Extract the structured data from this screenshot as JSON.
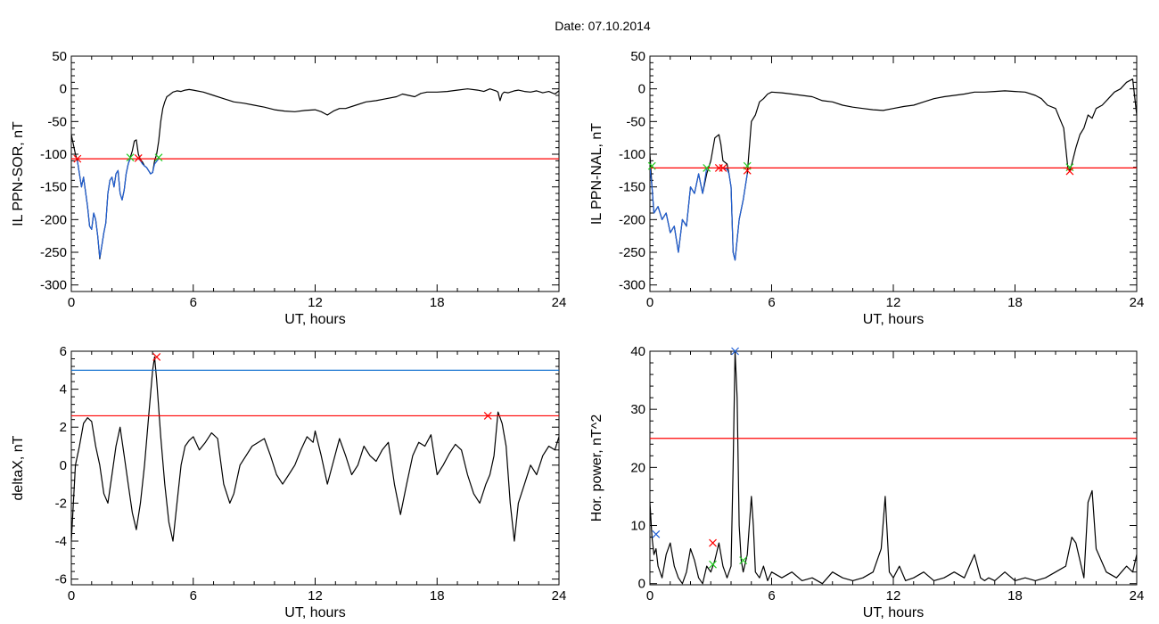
{
  "figure_title": "Date:  07.10.2014",
  "colors": {
    "black": "#000000",
    "threshold": "#ff0000",
    "blue_level": "#0066cc",
    "blue_trace": "#1f5fd6",
    "green_mark": "#22cc22",
    "red_mark": "#ff0000"
  },
  "chart_data": [
    {
      "id": "il-sor",
      "type": "line",
      "title": "",
      "xlabel": "UT, hours",
      "ylabel": "IL PPN-SOR, nT",
      "xlim": [
        0,
        24
      ],
      "ylim": [
        -310,
        50
      ],
      "xticks": [
        0,
        6,
        12,
        18,
        24
      ],
      "yticks": [
        -300,
        -250,
        -200,
        -150,
        -100,
        -50,
        0,
        50
      ],
      "grid": false,
      "hlines": [
        {
          "y": -107,
          "color": "#ff0000"
        }
      ],
      "series": [
        {
          "color": "#000000",
          "x": [
            0,
            0.1,
            0.2,
            0.3,
            0.5,
            0.6,
            0.8,
            0.9,
            1.0,
            1.1,
            1.2,
            1.3,
            1.4,
            1.5,
            1.6,
            1.7,
            1.8,
            1.9,
            2.0,
            2.1,
            2.2,
            2.3,
            2.4,
            2.5,
            2.6,
            2.7,
            2.8,
            2.9,
            3.0,
            3.1,
            3.2,
            3.3,
            3.4,
            3.5,
            3.6,
            3.7,
            3.8,
            3.9,
            4.0,
            4.1,
            4.2,
            4.3,
            4.4,
            4.5,
            4.6,
            4.7,
            4.8,
            5.0,
            5.2,
            5.4,
            5.6,
            5.8,
            6.0,
            6.5,
            7.0,
            7.5,
            8.0,
            8.5,
            9.0,
            9.5,
            10.0,
            10.5,
            11.0,
            11.5,
            12.0,
            12.3,
            12.6,
            12.9,
            13.2,
            13.5,
            14.0,
            14.5,
            15.0,
            15.5,
            16.0,
            16.3,
            16.6,
            16.9,
            17.2,
            17.5,
            18.0,
            18.5,
            19.0,
            19.5,
            20.0,
            20.3,
            20.6,
            20.9,
            21.0,
            21.1,
            21.2,
            21.3,
            21.5,
            21.8,
            22.0,
            22.3,
            22.6,
            22.9,
            23.2,
            23.5,
            23.8,
            24.0
          ],
          "y": [
            -70,
            -85,
            -100,
            -110,
            -150,
            -135,
            -180,
            -210,
            -215,
            -190,
            -200,
            -225,
            -260,
            -240,
            -220,
            -205,
            -160,
            -140,
            -135,
            -150,
            -130,
            -125,
            -160,
            -170,
            -155,
            -130,
            -115,
            -105,
            -95,
            -80,
            -78,
            -100,
            -108,
            -112,
            -118,
            -120,
            -125,
            -130,
            -128,
            -110,
            -100,
            -80,
            -50,
            -30,
            -20,
            -12,
            -10,
            -5,
            -3,
            -4,
            -2,
            -1,
            -2,
            -5,
            -10,
            -15,
            -20,
            -22,
            -25,
            -28,
            -32,
            -34,
            -35,
            -33,
            -32,
            -35,
            -40,
            -34,
            -30,
            -30,
            -25,
            -20,
            -18,
            -15,
            -12,
            -8,
            -10,
            -12,
            -7,
            -5,
            -5,
            -4,
            -2,
            0,
            -2,
            -4,
            0,
            -3,
            -5,
            -18,
            -8,
            -5,
            -6,
            -3,
            -2,
            -4,
            -5,
            -3,
            -6,
            -4,
            -8,
            -3
          ]
        },
        {
          "color": "#1f5fd6",
          "x": [
            0.3,
            0.5,
            0.6,
            0.8,
            0.9,
            1.0,
            1.1,
            1.2,
            1.3,
            1.4,
            1.5,
            1.6,
            1.7,
            1.8,
            1.9,
            2.0,
            2.1,
            2.2,
            2.3,
            2.4,
            2.5,
            2.6,
            2.7,
            2.8,
            2.9
          ],
          "y": [
            -110,
            -150,
            -135,
            -180,
            -210,
            -215,
            -190,
            -200,
            -225,
            -258,
            -240,
            -220,
            -205,
            -160,
            -140,
            -135,
            -150,
            -130,
            -125,
            -160,
            -170,
            -155,
            -130,
            -115,
            -107
          ]
        },
        {
          "color": "#1f5fd6",
          "x": [
            3.3,
            3.4,
            3.5,
            3.6,
            3.7,
            3.8,
            3.9,
            4.0,
            4.1,
            4.3
          ],
          "y": [
            -107,
            -110,
            -115,
            -118,
            -120,
            -125,
            -130,
            -128,
            -115,
            -107
          ]
        }
      ],
      "markers": [
        {
          "x": 0.3,
          "y": -107,
          "color": "#ff0000"
        },
        {
          "x": 2.9,
          "y": -105,
          "color": "#22cc22"
        },
        {
          "x": 3.3,
          "y": -106,
          "color": "#ff0000"
        },
        {
          "x": 4.3,
          "y": -105,
          "color": "#22cc22"
        }
      ]
    },
    {
      "id": "il-nal",
      "type": "line",
      "title": "",
      "xlabel": "UT, hours",
      "ylabel": "IL PPN-NAL, nT",
      "xlim": [
        0,
        24
      ],
      "ylim": [
        -310,
        50
      ],
      "xticks": [
        0,
        6,
        12,
        18,
        24
      ],
      "yticks": [
        -300,
        -250,
        -200,
        -150,
        -100,
        -50,
        0,
        50
      ],
      "grid": false,
      "hlines": [
        {
          "y": -121,
          "color": "#ff0000"
        }
      ],
      "series": [
        {
          "color": "#000000",
          "x": [
            0,
            0.1,
            0.2,
            0.4,
            0.6,
            0.8,
            1.0,
            1.2,
            1.4,
            1.6,
            1.8,
            2.0,
            2.2,
            2.4,
            2.6,
            2.8,
            3.0,
            3.2,
            3.4,
            3.5,
            3.6,
            3.8,
            3.9,
            4.0,
            4.1,
            4.2,
            4.4,
            4.6,
            4.7,
            4.8,
            5.0,
            5.2,
            5.4,
            5.6,
            5.8,
            6.0,
            6.5,
            7.0,
            7.5,
            8.0,
            8.5,
            9.0,
            9.5,
            10.0,
            10.5,
            11.0,
            11.5,
            12.0,
            12.5,
            13.0,
            13.5,
            14.0,
            14.5,
            15.0,
            15.5,
            16.0,
            16.5,
            17.0,
            17.5,
            18.0,
            18.5,
            19.0,
            19.3,
            19.6,
            20.0,
            20.2,
            20.4,
            20.6,
            20.7,
            20.8,
            21.0,
            21.2,
            21.4,
            21.6,
            21.8,
            22.0,
            22.3,
            22.6,
            22.9,
            23.2,
            23.5,
            23.8,
            24.0
          ],
          "y": [
            -100,
            -150,
            -190,
            -180,
            -200,
            -190,
            -220,
            -210,
            -250,
            -200,
            -210,
            -150,
            -160,
            -130,
            -160,
            -130,
            -110,
            -75,
            -70,
            -85,
            -110,
            -115,
            -130,
            -150,
            -250,
            -262,
            -200,
            -170,
            -150,
            -130,
            -50,
            -40,
            -20,
            -15,
            -8,
            -5,
            -6,
            -8,
            -10,
            -12,
            -18,
            -20,
            -25,
            -28,
            -30,
            -32,
            -33,
            -30,
            -27,
            -25,
            -20,
            -15,
            -12,
            -10,
            -8,
            -5,
            -5,
            -4,
            -3,
            -4,
            -5,
            -10,
            -15,
            -25,
            -30,
            -45,
            -60,
            -120,
            -125,
            -115,
            -90,
            -70,
            -60,
            -40,
            -45,
            -30,
            -25,
            -15,
            -5,
            0,
            10,
            15,
            -40
          ]
        },
        {
          "color": "#1f5fd6",
          "x": [
            0,
            0.1,
            0.2,
            0.4,
            0.6,
            0.8,
            1.0,
            1.2,
            1.4,
            1.6,
            1.8,
            2.0,
            2.2,
            2.4,
            2.6,
            2.8
          ],
          "y": [
            -121,
            -150,
            -190,
            -180,
            -200,
            -190,
            -220,
            -210,
            -250,
            -200,
            -210,
            -150,
            -160,
            -130,
            -160,
            -121
          ]
        },
        {
          "color": "#1f5fd6",
          "x": [
            3.5,
            3.6,
            3.8,
            3.9,
            4.0,
            4.1,
            4.2,
            4.4,
            4.6,
            4.7,
            4.8
          ],
          "y": [
            -121,
            -121,
            -123,
            -130,
            -150,
            -250,
            -262,
            -200,
            -170,
            -150,
            -130
          ]
        }
      ],
      "markers": [
        {
          "x": 0.1,
          "y": -118,
          "color": "#22cc22"
        },
        {
          "x": 2.8,
          "y": -121,
          "color": "#22cc22"
        },
        {
          "x": 3.4,
          "y": -121,
          "color": "#ff0000"
        },
        {
          "x": 3.6,
          "y": -121,
          "color": "#ff0000"
        },
        {
          "x": 4.8,
          "y": -118,
          "color": "#22cc22"
        },
        {
          "x": 4.8,
          "y": -125,
          "color": "#ff0000"
        },
        {
          "x": 20.7,
          "y": -120,
          "color": "#22cc22"
        },
        {
          "x": 20.7,
          "y": -126,
          "color": "#ff0000"
        }
      ]
    },
    {
      "id": "deltax",
      "type": "line",
      "title": "",
      "xlabel": "UT, hours",
      "ylabel": "deltaX, nT",
      "xlim": [
        0,
        24
      ],
      "ylim": [
        -6.3,
        6
      ],
      "xticks": [
        0,
        6,
        12,
        18,
        24
      ],
      "yticks": [
        -6,
        -4,
        -2,
        0,
        2,
        4,
        6
      ],
      "grid": false,
      "hlines": [
        {
          "y": 5.0,
          "color": "#0066cc"
        },
        {
          "y": 2.6,
          "color": "#ff0000"
        }
      ],
      "series": [
        {
          "color": "#000000",
          "x": [
            0,
            0.1,
            0.2,
            0.4,
            0.6,
            0.8,
            1.0,
            1.2,
            1.4,
            1.6,
            1.8,
            2.0,
            2.2,
            2.4,
            2.6,
            2.8,
            3.0,
            3.2,
            3.4,
            3.6,
            3.8,
            4.0,
            4.1,
            4.2,
            4.3,
            4.4,
            4.6,
            4.8,
            5.0,
            5.2,
            5.4,
            5.6,
            5.8,
            6.0,
            6.3,
            6.6,
            6.9,
            7.2,
            7.5,
            7.8,
            8.0,
            8.3,
            8.6,
            8.9,
            9.2,
            9.5,
            9.8,
            10.1,
            10.4,
            10.7,
            11.0,
            11.3,
            11.6,
            11.9,
            12.0,
            12.3,
            12.6,
            12.9,
            13.2,
            13.5,
            13.8,
            14.1,
            14.4,
            14.7,
            15.0,
            15.3,
            15.6,
            15.9,
            16.2,
            16.5,
            16.8,
            17.1,
            17.4,
            17.7,
            18.0,
            18.3,
            18.6,
            18.9,
            19.2,
            19.5,
            19.8,
            20.1,
            20.4,
            20.6,
            20.8,
            21.0,
            21.2,
            21.4,
            21.6,
            21.8,
            22.0,
            22.3,
            22.6,
            22.9,
            23.2,
            23.5,
            23.8,
            24.0
          ],
          "y": [
            -4,
            -2,
            0,
            1,
            2.2,
            2.5,
            2.3,
            1,
            0,
            -1.5,
            -2,
            -0.5,
            1,
            2,
            0.5,
            -1,
            -2.5,
            -3.4,
            -2,
            0,
            2.5,
            5,
            5.7,
            4.5,
            3,
            1.5,
            -1,
            -3,
            -4,
            -2,
            0,
            1,
            1.3,
            1.5,
            0.8,
            1.2,
            1.7,
            1.4,
            -1,
            -2,
            -1.5,
            0,
            0.5,
            1,
            1.2,
            1.4,
            0.5,
            -0.5,
            -1,
            -0.5,
            0,
            0.8,
            1.5,
            1.2,
            1.8,
            0.5,
            -1,
            0.2,
            1.4,
            0.5,
            -0.5,
            0,
            1,
            0.5,
            0.2,
            0.8,
            1.2,
            -1,
            -2.6,
            -1,
            0.5,
            1.2,
            1,
            1.6,
            -0.5,
            0,
            0.6,
            1.1,
            0.8,
            -0.5,
            -1.5,
            -2,
            -1,
            -0.5,
            0.5,
            2.8,
            2.2,
            1,
            -2,
            -4,
            -2,
            -1,
            0,
            -0.5,
            0.5,
            1,
            0.8,
            1.5
          ]
        }
      ],
      "markers": [
        {
          "x": 4.2,
          "y": 5.7,
          "color": "#ff0000"
        },
        {
          "x": 20.5,
          "y": 2.6,
          "color": "#ff0000"
        }
      ]
    },
    {
      "id": "hor-power",
      "type": "line",
      "title": "",
      "xlabel": "UT, hours",
      "ylabel": "Hor. power, nT^2",
      "xlim": [
        0,
        24
      ],
      "ylim": [
        -0.2,
        40
      ],
      "xticks": [
        0,
        6,
        12,
        18,
        24
      ],
      "yticks": [
        0,
        10,
        20,
        30,
        40
      ],
      "grid": false,
      "hlines": [
        {
          "y": 25,
          "color": "#ff0000"
        }
      ],
      "series": [
        {
          "color": "#000000",
          "x": [
            0,
            0.1,
            0.2,
            0.3,
            0.4,
            0.6,
            0.8,
            1.0,
            1.2,
            1.4,
            1.6,
            1.8,
            2.0,
            2.2,
            2.4,
            2.6,
            2.8,
            3.0,
            3.2,
            3.4,
            3.6,
            3.8,
            4.0,
            4.1,
            4.2,
            4.3,
            4.4,
            4.5,
            4.6,
            4.8,
            5.0,
            5.1,
            5.2,
            5.4,
            5.6,
            5.8,
            6.0,
            6.5,
            7.0,
            7.5,
            8.0,
            8.5,
            9.0,
            9.5,
            10.0,
            10.5,
            11.0,
            11.4,
            11.6,
            11.8,
            12.0,
            12.3,
            12.6,
            13.0,
            13.5,
            14.0,
            14.5,
            15.0,
            15.5,
            16.0,
            16.3,
            16.5,
            16.7,
            17.0,
            17.5,
            18.0,
            18.5,
            19.0,
            19.5,
            20.0,
            20.5,
            20.8,
            21.0,
            21.2,
            21.4,
            21.6,
            21.8,
            22.0,
            22.5,
            23.0,
            23.5,
            23.8,
            24.0
          ],
          "y": [
            14,
            8,
            5,
            6,
            3,
            1,
            5,
            7,
            3,
            1,
            0,
            2,
            6,
            4,
            1,
            0,
            3,
            2,
            4,
            7,
            3,
            1,
            3,
            20,
            40,
            32,
            10,
            4,
            2,
            5,
            15,
            10,
            2,
            1,
            3,
            0.5,
            2,
            1,
            2,
            0.5,
            1,
            0,
            2,
            1,
            0.5,
            1,
            2,
            6,
            15,
            2,
            1,
            3,
            0.5,
            1,
            2,
            0.5,
            1,
            2,
            1,
            5,
            1,
            0.5,
            1,
            0.5,
            2,
            0.5,
            1,
            0.5,
            1,
            2,
            3,
            8,
            7,
            4,
            1,
            14,
            16,
            6,
            2,
            1,
            3,
            2,
            5
          ]
        }
      ],
      "markers": [
        {
          "x": 0.3,
          "y": 8.5,
          "color": "#1f5fd6"
        },
        {
          "x": 3.1,
          "y": 7,
          "color": "#ff0000"
        },
        {
          "x": 3.1,
          "y": 3.3,
          "color": "#22cc22"
        },
        {
          "x": 4.2,
          "y": 40,
          "color": "#1f5fd6"
        },
        {
          "x": 4.6,
          "y": 4,
          "color": "#22cc22"
        }
      ]
    }
  ]
}
